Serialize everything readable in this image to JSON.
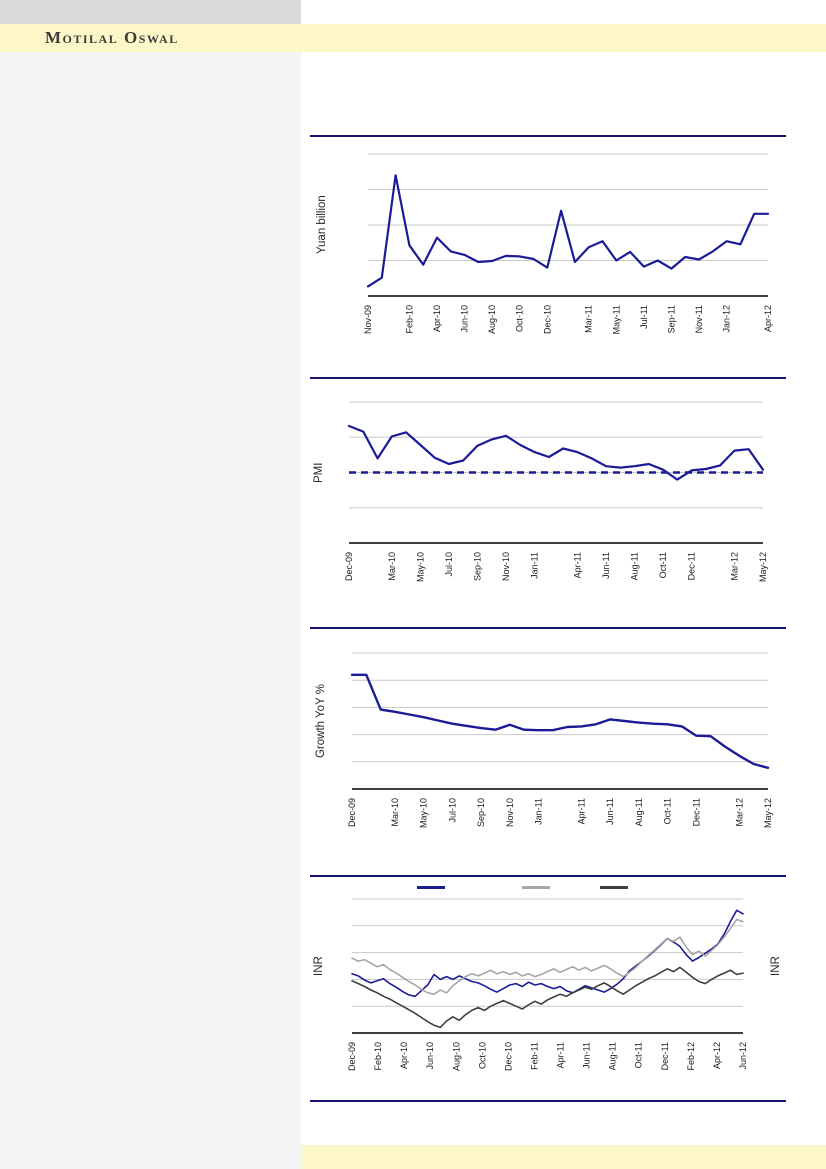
{
  "page": {
    "top_bar_color": "#d9d9d9",
    "band_color": "#fdf6c9",
    "left_panel_color": "#f4f4f5",
    "background": "#ffffff"
  },
  "header": {
    "brand": "Motilal Oswal",
    "text_color": "#3b3b3b"
  },
  "colors": {
    "navy": "#1b1b96",
    "gray_series": "#a6a6a6",
    "dark_series": "#3f3f3f",
    "gridline": "#c9c9c9",
    "axis": "#000000",
    "separator": "#14146e",
    "tick_text": "#1a1a1a"
  },
  "chart_data": [
    {
      "type": "line",
      "ylabel": "Yuan billion",
      "n_months": 30,
      "ylim": [
        200,
        1600
      ],
      "grid": "horizontal",
      "x_ticks": [
        {
          "label": "Nov-09",
          "month": 1
        },
        {
          "label": "Feb-10",
          "month": 4
        },
        {
          "label": "Apr-10",
          "month": 6
        },
        {
          "label": "Jun-10",
          "month": 8
        },
        {
          "label": "Aug-10",
          "month": 10
        },
        {
          "label": "Oct-10",
          "month": 12
        },
        {
          "label": "Dec-10",
          "month": 14
        },
        {
          "label": "Mar-11",
          "month": 17
        },
        {
          "label": "May-11",
          "month": 19
        },
        {
          "label": "Jul-11",
          "month": 21
        },
        {
          "label": "Sep-11",
          "month": 23
        },
        {
          "label": "Nov-11",
          "month": 25
        },
        {
          "label": "Jan-12",
          "month": 27
        },
        {
          "label": "Apr-12",
          "month": 30
        }
      ],
      "series": [
        {
          "name": "monthly-value-yuan-billion",
          "color": "#1b1b96",
          "values": [
            295,
            380,
            1390,
            700,
            510,
            775,
            640,
            605,
            535,
            545,
            595,
            590,
            565,
            480,
            1040,
            535,
            680,
            740,
            550,
            635,
            490,
            550,
            470,
            585,
            560,
            640,
            740,
            710,
            1010,
            1010
          ]
        }
      ]
    },
    {
      "type": "line",
      "ylabel": "PMI",
      "n_months": 30,
      "ylim": [
        40,
        60
      ],
      "grid": "horizontal",
      "reference_line": {
        "value": 50,
        "style": "dashed",
        "color": "#1b1b96"
      },
      "x_ticks": [
        {
          "label": "Dec-09",
          "month": 1
        },
        {
          "label": "Mar-10",
          "month": 4
        },
        {
          "label": "May-10",
          "month": 6
        },
        {
          "label": "Jul-10",
          "month": 8
        },
        {
          "label": "Sep-10",
          "month": 10
        },
        {
          "label": "Nov-10",
          "month": 12
        },
        {
          "label": "Jan-11",
          "month": 14
        },
        {
          "label": "Apr-11",
          "month": 17
        },
        {
          "label": "Jun-11",
          "month": 19
        },
        {
          "label": "Aug-11",
          "month": 21
        },
        {
          "label": "Oct-11",
          "month": 23
        },
        {
          "label": "Dec-11",
          "month": 25
        },
        {
          "label": "Mar-12",
          "month": 28
        },
        {
          "label": "May-12",
          "month": 30
        }
      ],
      "series": [
        {
          "name": "pmi",
          "color": "#1b1b96",
          "values": [
            56.6,
            55.8,
            52.0,
            55.1,
            55.7,
            53.9,
            52.1,
            51.2,
            51.7,
            53.8,
            54.7,
            55.2,
            53.9,
            52.9,
            52.2,
            53.4,
            52.9,
            52.0,
            50.9,
            50.7,
            50.9,
            51.2,
            50.4,
            49.0,
            50.3,
            50.5,
            51.0,
            53.1,
            53.3,
            50.4
          ]
        }
      ]
    },
    {
      "type": "line",
      "ylabel": "Growth YoY %",
      "n_months": 30,
      "ylim": [
        5,
        30
      ],
      "grid": "horizontal",
      "x_ticks": [
        {
          "label": "Dec-09",
          "month": 1
        },
        {
          "label": "Mar-10",
          "month": 4
        },
        {
          "label": "May-10",
          "month": 6
        },
        {
          "label": "Jul-10",
          "month": 8
        },
        {
          "label": "Sep-10",
          "month": 10
        },
        {
          "label": "Nov-10",
          "month": 12
        },
        {
          "label": "Jan-11",
          "month": 14
        },
        {
          "label": "Apr-11",
          "month": 17
        },
        {
          "label": "Jun-11",
          "month": 19
        },
        {
          "label": "Aug-11",
          "month": 21
        },
        {
          "label": "Oct-11",
          "month": 23
        },
        {
          "label": "Dec-11",
          "month": 25
        },
        {
          "label": "Mar-12",
          "month": 28
        },
        {
          "label": "May-12",
          "month": 30
        }
      ],
      "series": [
        {
          "name": "growth-yoy",
          "color": "#1b1b96",
          "values": [
            26,
            26,
            19.6,
            19.2,
            18.7,
            18.2,
            17.6,
            17.0,
            16.6,
            16.2,
            15.9,
            16.8,
            15.9,
            15.8,
            15.8,
            16.4,
            16.5,
            16.9,
            17.8,
            17.5,
            17.2,
            17.0,
            16.9,
            16.5,
            14.8,
            14.7,
            12.8,
            11.1,
            9.6,
            8.9
          ]
        }
      ]
    },
    {
      "type": "line",
      "ylabel": "INR",
      "ylabel_right": "INR",
      "n_months": 31,
      "ylim": [
        39,
        58
      ],
      "grid": "horizontal",
      "legend": [
        {
          "name": "legend-swatch-navy",
          "color": "#1b1b96"
        },
        {
          "name": "legend-swatch-gray",
          "color": "#a6a6a6"
        },
        {
          "name": "legend-swatch-dark",
          "color": "#3f3f3f"
        }
      ],
      "x_ticks": [
        {
          "label": "Dec-09",
          "month": 1
        },
        {
          "label": "Feb-10",
          "month": 3
        },
        {
          "label": "Apr-10",
          "month": 5
        },
        {
          "label": "Jun-10",
          "month": 7
        },
        {
          "label": "Aug-10",
          "month": 9
        },
        {
          "label": "Oct-10",
          "month": 11
        },
        {
          "label": "Dec-10",
          "month": 13
        },
        {
          "label": "Feb-11",
          "month": 15
        },
        {
          "label": "Apr-11",
          "month": 17
        },
        {
          "label": "Jun-11",
          "month": 19
        },
        {
          "label": "Aug-11",
          "month": 21
        },
        {
          "label": "Oct-11",
          "month": 23
        },
        {
          "label": "Dec-11",
          "month": 25
        },
        {
          "label": "Feb-12",
          "month": 27
        },
        {
          "label": "Apr-12",
          "month": 29
        },
        {
          "label": "Jun-12",
          "month": 31
        }
      ],
      "series": [
        {
          "name": "currency-series-navy",
          "color": "#1b1b96",
          "values": [
            47.4,
            47.1,
            46.5,
            46.1,
            46.4,
            46.7,
            46.0,
            45.5,
            44.9,
            44.4,
            44.2,
            45.0,
            45.8,
            47.3,
            46.6,
            47.0,
            46.6,
            47.1,
            46.7,
            46.3,
            46.1,
            45.7,
            45.2,
            44.8,
            45.3,
            45.8,
            46.0,
            45.6,
            46.2,
            45.8,
            46.0,
            45.6,
            45.3,
            45.6,
            45.0,
            44.7,
            45.2,
            45.7,
            45.4,
            45.1,
            44.8,
            45.3,
            45.9,
            46.7,
            47.8,
            48.5,
            49.2,
            49.9,
            50.7,
            51.5,
            52.4,
            51.9,
            51.3,
            50.1,
            49.2,
            49.7,
            50.3,
            50.9,
            51.6,
            53.0,
            54.8,
            56.4,
            55.9
          ]
        },
        {
          "name": "currency-series-gray",
          "color": "#a6a6a6",
          "values": [
            49.6,
            49.2,
            49.4,
            48.9,
            48.4,
            48.7,
            48.0,
            47.5,
            46.9,
            46.3,
            45.8,
            45.2,
            44.7,
            44.5,
            45.1,
            44.7,
            45.7,
            46.4,
            47.0,
            47.4,
            47.1,
            47.5,
            47.9,
            47.4,
            47.7,
            47.3,
            47.6,
            47.1,
            47.4,
            47.0,
            47.3,
            47.7,
            48.1,
            47.6,
            48.0,
            48.4,
            47.9,
            48.3,
            47.8,
            48.2,
            48.6,
            48.1,
            47.5,
            47.0,
            47.6,
            48.3,
            49.2,
            50.0,
            50.8,
            51.6,
            52.4,
            52.0,
            52.6,
            51.2,
            50.1,
            50.6,
            49.9,
            50.7,
            51.5,
            52.6,
            53.8,
            55.1,
            54.8
          ]
        },
        {
          "name": "currency-series-dark",
          "color": "#3f3f3f",
          "values": [
            46.4,
            46.0,
            45.6,
            45.1,
            44.7,
            44.2,
            43.8,
            43.3,
            42.8,
            42.3,
            41.8,
            41.2,
            40.6,
            40.1,
            39.8,
            40.7,
            41.3,
            40.8,
            41.6,
            42.2,
            42.6,
            42.2,
            42.8,
            43.2,
            43.6,
            43.2,
            42.8,
            42.4,
            43.0,
            43.5,
            43.1,
            43.7,
            44.1,
            44.5,
            44.2,
            44.7,
            45.1,
            45.5,
            45.2,
            45.7,
            46.1,
            45.6,
            45.0,
            44.5,
            45.1,
            45.7,
            46.2,
            46.7,
            47.1,
            47.6,
            48.1,
            47.7,
            48.3,
            47.6,
            46.9,
            46.3,
            46.0,
            46.6,
            47.1,
            47.5,
            47.9,
            47.3,
            47.5
          ]
        }
      ]
    }
  ]
}
